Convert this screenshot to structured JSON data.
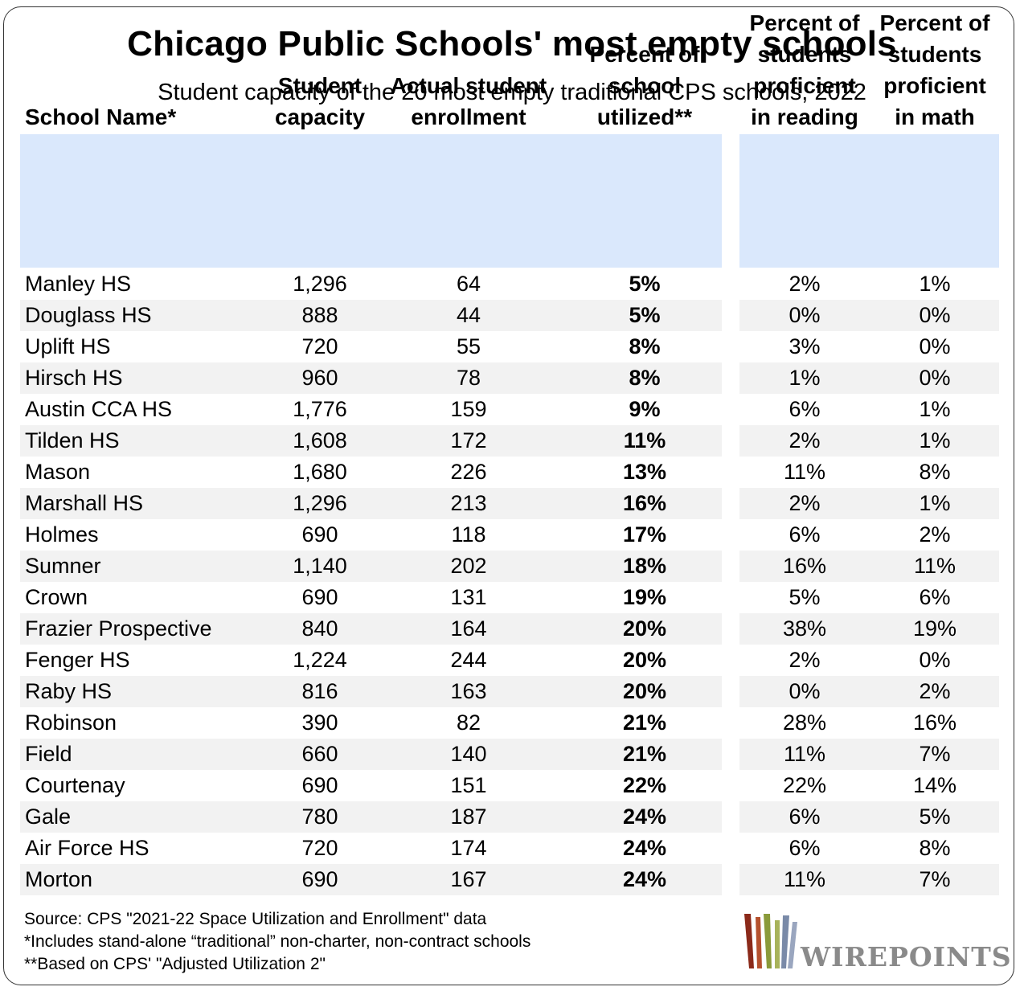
{
  "title": "Chicago Public Schools' most empty schools",
  "subtitle": "Student capacity of the 20 most empty traditional CPS schools, 2022",
  "columns": {
    "name": "School Name*",
    "capacity": "Student\ncapacity",
    "enrollment": "Actual student\nenrollment",
    "utilized": "Percent of\nschool\nutilized**",
    "reading": "Percent of\nstudents\nproficient\nin reading",
    "math": "Percent of\nstudents\nproficient\nin math"
  },
  "chart_data": {
    "type": "table",
    "title": "Chicago Public Schools' most empty schools",
    "subtitle": "Student capacity of the 20 most empty traditional CPS schools, 2022",
    "headers": [
      "School Name*",
      "Student capacity",
      "Actual student enrollment",
      "Percent of school utilized**",
      "Percent of students proficient in reading",
      "Percent of students proficient in math"
    ],
    "rows": [
      [
        "Manley HS",
        "1,296",
        "64",
        "5%",
        "2%",
        "1%"
      ],
      [
        "Douglass HS",
        "888",
        "44",
        "5%",
        "0%",
        "0%"
      ],
      [
        "Uplift HS",
        "720",
        "55",
        "8%",
        "3%",
        "0%"
      ],
      [
        "Hirsch HS",
        "960",
        "78",
        "8%",
        "1%",
        "0%"
      ],
      [
        "Austin CCA HS",
        "1,776",
        "159",
        "9%",
        "6%",
        "1%"
      ],
      [
        "Tilden HS",
        "1,608",
        "172",
        "11%",
        "2%",
        "1%"
      ],
      [
        "Mason",
        "1,680",
        "226",
        "13%",
        "11%",
        "8%"
      ],
      [
        "Marshall HS",
        "1,296",
        "213",
        "16%",
        "2%",
        "1%"
      ],
      [
        "Holmes",
        "690",
        "118",
        "17%",
        "6%",
        "2%"
      ],
      [
        "Sumner",
        "1,140",
        "202",
        "18%",
        "16%",
        "11%"
      ],
      [
        "Crown",
        "690",
        "131",
        "19%",
        "5%",
        "6%"
      ],
      [
        "Frazier Prospective",
        "840",
        "164",
        "20%",
        "38%",
        "19%"
      ],
      [
        "Fenger HS",
        "1,224",
        "244",
        "20%",
        "2%",
        "0%"
      ],
      [
        "Raby HS",
        "816",
        "163",
        "20%",
        "0%",
        "2%"
      ],
      [
        "Robinson",
        "390",
        "82",
        "21%",
        "28%",
        "16%"
      ],
      [
        "Field",
        "660",
        "140",
        "21%",
        "11%",
        "7%"
      ],
      [
        "Courtenay",
        "690",
        "151",
        "22%",
        "22%",
        "14%"
      ],
      [
        "Gale",
        "780",
        "187",
        "24%",
        "6%",
        "5%"
      ],
      [
        "Air Force HS",
        "720",
        "174",
        "24%",
        "6%",
        "8%"
      ],
      [
        "Morton",
        "690",
        "167",
        "24%",
        "11%",
        "7%"
      ]
    ]
  },
  "notes": [
    "Source: CPS \"2021-22 Space Utilization and Enrollment\" data",
    "*Includes stand-alone “traditional” non-charter, non-contract schools",
    "**Based on CPS' \"Adjusted Utilization 2\""
  ],
  "logo": {
    "text": "WIREPOINTS",
    "icon": "wirepoints-logo-icon",
    "colors": [
      "#8b2a1a",
      "#8a9a3a",
      "#7a8aa8"
    ]
  },
  "colors": {
    "header_bg": "#dae8fc",
    "alt_row_bg": "#f2f2f2",
    "logo_text": "#8a8a8a"
  }
}
